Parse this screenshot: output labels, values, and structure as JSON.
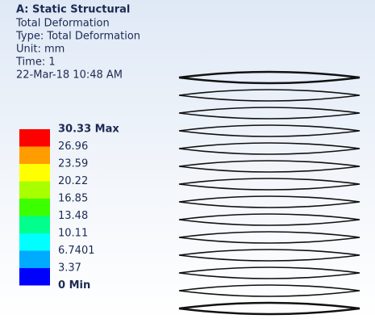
{
  "header": {
    "title": "A: Static Structural",
    "lines": [
      "Total Deformation",
      "Type: Total Deformation",
      "Unit: mm",
      "Time: 1",
      "22-Mar-18 10:48 AM"
    ]
  },
  "legend": {
    "labels": [
      "30.33 Max",
      "26.96",
      "23.59",
      "20.22",
      "16.85",
      "13.48",
      "10.11",
      "6.7401",
      "3.37",
      "0 Min"
    ],
    "colors": [
      "#ff0000",
      "#ff9c00",
      "#ffff00",
      "#a8ff00",
      "#3cff00",
      "#00ff8c",
      "#00ffff",
      "#00aaff",
      "#0000ff"
    ]
  }
}
